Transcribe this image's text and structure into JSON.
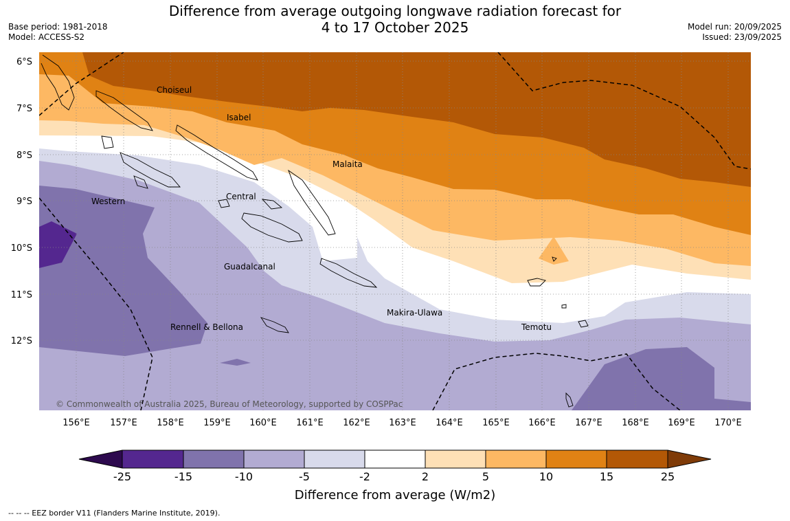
{
  "title": {
    "line1": "Difference from average outgoing longwave radiation forecast for",
    "line2": "4 to 17 October 2025"
  },
  "meta": {
    "base_period": "Base period: 1981-2018",
    "model": "Model: ACCESS-S2",
    "model_run": "Model run: 20/09/2025",
    "issued": "Issued: 23/09/2025"
  },
  "map": {
    "lat_labels": [
      "6°S",
      "7°S",
      "8°S",
      "9°S",
      "10°S",
      "11°S",
      "12°S"
    ],
    "lon_labels": [
      "156°E",
      "157°E",
      "158°E",
      "159°E",
      "160°E",
      "161°E",
      "162°E",
      "163°E",
      "164°E",
      "165°E",
      "166°E",
      "167°E",
      "168°E",
      "169°E",
      "170°E"
    ],
    "regions": [
      "Choiseul",
      "Isabel",
      "Malaita",
      "Western",
      "Central",
      "Guadalcanal",
      "Makira-Ulawa",
      "Rennell & Bellona",
      "Temotu"
    ],
    "copyright": "© Commonwealth of Australia 2025, Bureau of Meteorology, supported by COSPPac"
  },
  "colorbar": {
    "title": "Difference from average (W/m2)",
    "ticks": [
      "-25",
      "-15",
      "-10",
      "-5",
      "-2",
      "2",
      "5",
      "10",
      "15",
      "25"
    ],
    "colors": {
      "below_min": "#2d0a4e",
      "n25_n15": "#54278f",
      "n15_n10": "#8073ac",
      "n10_n5": "#b2abd2",
      "n5_n2": "#d8daeb",
      "n2_p2": "#ffffff",
      "p2_p5": "#fee0b6",
      "p5_p10": "#fdb863",
      "p10_p15": "#e08214",
      "p15_p25": "#b35806",
      "above_max": "#7f3b08"
    }
  },
  "footnote": "-- -- -- EEZ border V11 (Flanders Marine Institute, 2019)."
}
